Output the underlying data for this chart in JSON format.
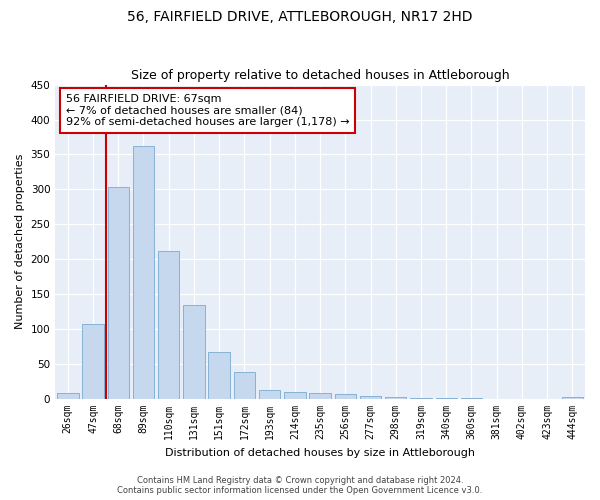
{
  "title": "56, FAIRFIELD DRIVE, ATTLEBOROUGH, NR17 2HD",
  "subtitle": "Size of property relative to detached houses in Attleborough",
  "xlabel": "Distribution of detached houses by size in Attleborough",
  "ylabel": "Number of detached properties",
  "categories": [
    "26sqm",
    "47sqm",
    "68sqm",
    "89sqm",
    "110sqm",
    "131sqm",
    "151sqm",
    "172sqm",
    "193sqm",
    "214sqm",
    "235sqm",
    "256sqm",
    "277sqm",
    "298sqm",
    "319sqm",
    "340sqm",
    "360sqm",
    "381sqm",
    "402sqm",
    "423sqm",
    "444sqm"
  ],
  "values": [
    8,
    108,
    303,
    362,
    212,
    135,
    68,
    38,
    13,
    10,
    9,
    7,
    5,
    3,
    2,
    1,
    1,
    0,
    0,
    0,
    3
  ],
  "bar_color": "#c5d8ee",
  "bar_edge_color": "#7aaacf",
  "vline_color": "#cc0000",
  "annotation_line1": "56 FAIRFIELD DRIVE: 67sqm",
  "annotation_line2": "← 7% of detached houses are smaller (84)",
  "annotation_line3": "92% of semi-detached houses are larger (1,178) →",
  "ylim": [
    0,
    450
  ],
  "yticks": [
    0,
    50,
    100,
    150,
    200,
    250,
    300,
    350,
    400,
    450
  ],
  "footnote": "Contains HM Land Registry data © Crown copyright and database right 2024.\nContains public sector information licensed under the Open Government Licence v3.0.",
  "background_color": "#ffffff",
  "plot_bg_color": "#e8eef8",
  "title_fontsize": 10,
  "subtitle_fontsize": 9,
  "ylabel_fontsize": 8,
  "xlabel_fontsize": 8,
  "tick_fontsize": 7,
  "footnote_fontsize": 6,
  "annotation_fontsize": 8
}
